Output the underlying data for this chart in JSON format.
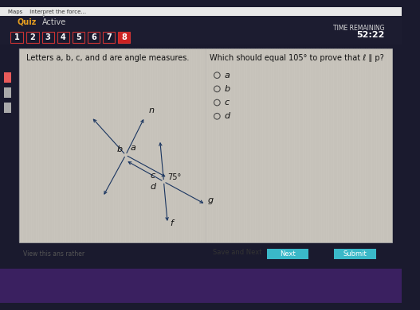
{
  "outer_bg": "#1a1a2e",
  "top_bar_bg": "#1a1a2e",
  "card_bg": "#c8c4bc",
  "card_texture": true,
  "title_text": "Letters a, b, c, and d are angle measures.",
  "question_text": "Which should equal 105° to prove that ℓ ∥ p?",
  "options": [
    "a",
    "b",
    "c",
    "d"
  ],
  "angle_label": "75°",
  "tab_numbers": [
    "1",
    "2",
    "3",
    "4",
    "5",
    "6",
    "7",
    "8"
  ],
  "active_tab": 7,
  "time_text1": "TIME REMAINING",
  "time_text2": "52:22",
  "arrow_color": "#1a3560",
  "label_color": "#111111",
  "font_size_title": 7,
  "font_size_question": 7,
  "font_size_options": 8,
  "font_size_angle": 7,
  "font_size_tab": 7,
  "quiz_label": "Quiz",
  "active_label": "Active",
  "nav_text": "View this ans rather",
  "btn_save": "Save and Next",
  "btn_next": "Next",
  "btn_submit": "Submit",
  "btn_next_color": "#3ab8c8",
  "btn_submit_color": "#3ab8c8",
  "btn_save_color": "#888888",
  "tab_border_color": "#cc3333",
  "tab_active_bg": "#cc2222",
  "tab_inactive_bg": "#1a1a2e",
  "tab_text_color": "#ffffff"
}
